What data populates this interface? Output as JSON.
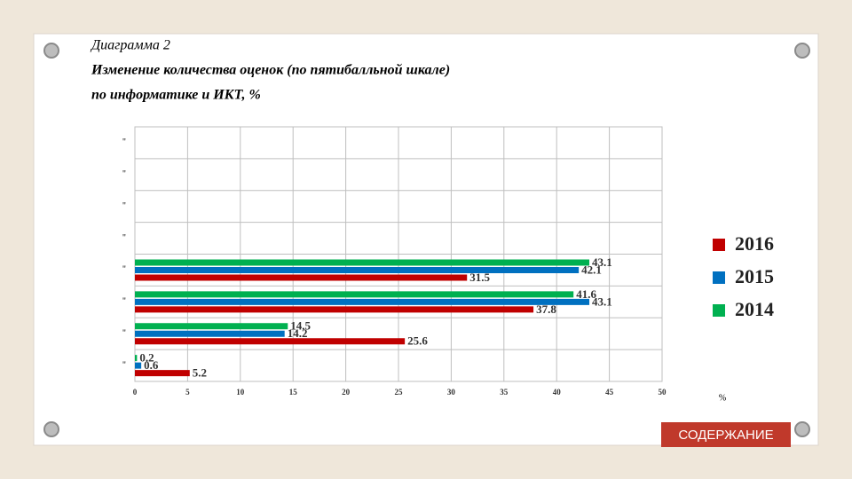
{
  "header": {
    "lines": [
      "Диаграмма 2",
      "Изменение количества оценок (по пятибалльной шкале)",
      "по информатике и ИКТ, %"
    ]
  },
  "button": {
    "label": "СОДЕРЖАНИЕ"
  },
  "chart_data": {
    "type": "barh",
    "categories": [
      "\"",
      "\"",
      "\"",
      "\"",
      "\"",
      "\"",
      "\"",
      "\""
    ],
    "series": [
      {
        "name": "2016",
        "color": "#c00000",
        "values": [
          5.2,
          25.6,
          37.8,
          31.5,
          null,
          null,
          null,
          null
        ]
      },
      {
        "name": "2015",
        "color": "#0070c0",
        "values": [
          0.6,
          14.2,
          43.1,
          42.1,
          null,
          null,
          null,
          null
        ]
      },
      {
        "name": "2014",
        "color": "#00b050",
        "values": [
          0.2,
          14.5,
          41.6,
          43.1,
          null,
          null,
          null,
          null
        ]
      }
    ],
    "xlim": [
      0,
      50
    ],
    "xticks": [
      0,
      5,
      10,
      15,
      20,
      25,
      30,
      35,
      40,
      45,
      50
    ],
    "xlabel": "%",
    "grid": true
  }
}
